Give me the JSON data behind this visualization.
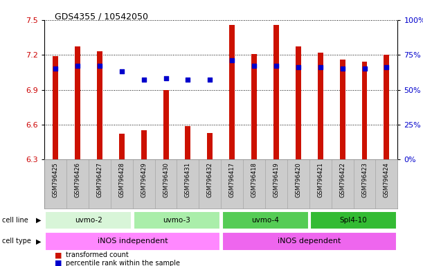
{
  "title": "GDS4355 / 10542050",
  "samples": [
    "GSM796425",
    "GSM796426",
    "GSM796427",
    "GSM796428",
    "GSM796429",
    "GSM796430",
    "GSM796431",
    "GSM796432",
    "GSM796417",
    "GSM796418",
    "GSM796419",
    "GSM796420",
    "GSM796421",
    "GSM796422",
    "GSM796423",
    "GSM796424"
  ],
  "red_values": [
    7.19,
    7.27,
    7.23,
    6.52,
    6.55,
    6.9,
    6.59,
    6.53,
    7.46,
    7.21,
    7.46,
    7.27,
    7.22,
    7.16,
    7.14,
    7.2
  ],
  "blue_percentiles": [
    65,
    67,
    67,
    63,
    57,
    58,
    57,
    57,
    71,
    67,
    67,
    66,
    66,
    65,
    65,
    66
  ],
  "ymin": 6.3,
  "ymax": 7.5,
  "y_ticks": [
    6.3,
    6.6,
    6.9,
    7.2,
    7.5
  ],
  "right_y_ticks": [
    0,
    25,
    50,
    75,
    100
  ],
  "right_y_labels": [
    "0%",
    "25%",
    "50%",
    "75%",
    "100%"
  ],
  "cell_lines": [
    {
      "label": "uvmo-2",
      "start": 0,
      "end": 4,
      "color": "#d8f5d8"
    },
    {
      "label": "uvmo-3",
      "start": 4,
      "end": 8,
      "color": "#aaeeaa"
    },
    {
      "label": "uvmo-4",
      "start": 8,
      "end": 12,
      "color": "#55cc55"
    },
    {
      "label": "Spl4-10",
      "start": 12,
      "end": 16,
      "color": "#33bb33"
    }
  ],
  "cell_types": [
    {
      "label": "iNOS independent",
      "start": 0,
      "end": 8,
      "color": "#ff88ff"
    },
    {
      "label": "iNOS dependent",
      "start": 8,
      "end": 16,
      "color": "#ee66ee"
    }
  ],
  "bar_color": "#cc1100",
  "blue_color": "#0000cc",
  "background_color": "#ffffff",
  "plot_bg": "#ffffff",
  "grid_color": "#000000",
  "tick_label_color_left": "#cc0000",
  "tick_label_color_right": "#0000cc",
  "label_bg": "#cccccc"
}
